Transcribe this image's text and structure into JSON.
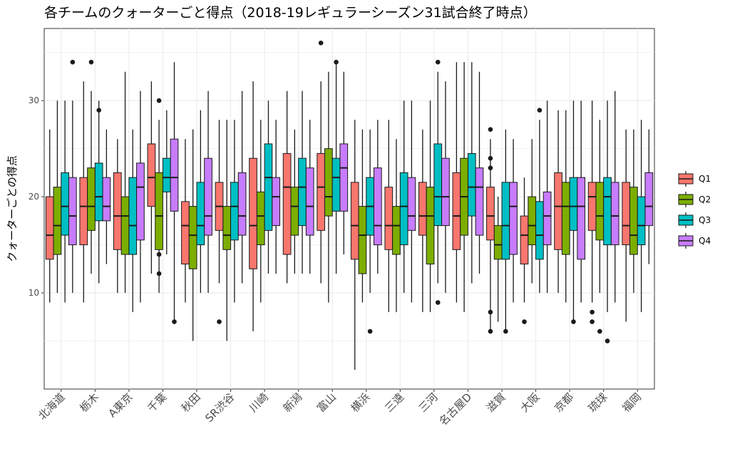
{
  "chart_data": {
    "type": "boxplot",
    "title": "各チームのクォーターごと得点（2018-19レギュラーシーズン31試合終了時点）",
    "xlabel": "",
    "ylabel": "クォーターごとの得点",
    "ylim": [
      0,
      37.5
    ],
    "yticks": [
      10,
      20,
      30
    ],
    "grid": true,
    "legend_position": "right",
    "series_names": [
      "Q1",
      "Q2",
      "Q3",
      "Q4"
    ],
    "colors": {
      "Q1": "#F8766D",
      "Q2": "#7CAE00",
      "Q3": "#00BFC4",
      "Q4": "#C77CFF"
    },
    "categories": [
      "北海道",
      "栃木",
      "A東京",
      "千葉",
      "秋田",
      "SR渋谷",
      "川崎",
      "新潟",
      "富山",
      "横浜",
      "三遠",
      "三河",
      "名古屋D",
      "滋賀",
      "大阪",
      "京都",
      "琉球",
      "福岡"
    ],
    "boxes": [
      [
        [
          9,
          13.5,
          16,
          20,
          27,
          []
        ],
        [
          10,
          14,
          17,
          21,
          30,
          []
        ],
        [
          9,
          16,
          19,
          22.5,
          30,
          []
        ],
        [
          10,
          15,
          18,
          22,
          30,
          [
            34
          ]
        ]
      ],
      [
        [
          9,
          15,
          19,
          22,
          32,
          []
        ],
        [
          12,
          16.5,
          19,
          23,
          31,
          [
            34
          ]
        ],
        [
          11,
          17.5,
          20,
          23.5,
          30,
          [
            29
          ]
        ],
        [
          13,
          17.5,
          19,
          22,
          27,
          []
        ]
      ],
      [
        [
          10,
          14.5,
          18,
          22.5,
          26,
          []
        ],
        [
          10,
          14,
          18,
          20,
          33,
          []
        ],
        [
          8,
          14,
          17,
          22,
          27,
          []
        ],
        [
          9,
          15.5,
          21,
          23.5,
          31,
          []
        ]
      ],
      [
        [
          12,
          19,
          22,
          25.5,
          32,
          []
        ],
        [
          10,
          14.5,
          18,
          22.5,
          28,
          [
            30,
            14,
            12
          ]
        ],
        [
          14,
          20.5,
          22,
          24,
          29,
          []
        ],
        [
          7,
          18.5,
          22,
          26,
          34,
          [
            7
          ]
        ]
      ],
      [
        [
          9,
          13,
          17,
          19.5,
          26,
          []
        ],
        [
          5,
          12.5,
          16,
          19,
          27,
          []
        ],
        [
          10,
          15,
          17,
          21.5,
          29,
          []
        ],
        [
          10,
          16,
          18,
          24,
          31,
          []
        ]
      ],
      [
        [
          11,
          16.5,
          19,
          21.5,
          28,
          [
            7
          ]
        ],
        [
          5,
          14.5,
          16,
          19,
          28,
          []
        ],
        [
          9,
          15.5,
          19,
          21.5,
          28,
          []
        ],
        [
          11,
          16,
          18,
          22.5,
          31,
          []
        ]
      ],
      [
        [
          6,
          12.5,
          17,
          24,
          32,
          []
        ],
        [
          9,
          15,
          18,
          20.5,
          28,
          []
        ],
        [
          12,
          16.5,
          22,
          25.5,
          30,
          []
        ],
        [
          12,
          17,
          20,
          22,
          28,
          []
        ]
      ],
      [
        [
          11,
          14,
          21,
          24.5,
          31,
          []
        ],
        [
          12,
          16,
          19,
          21,
          27,
          []
        ],
        [
          12,
          17,
          21,
          24,
          31,
          []
        ],
        [
          12,
          16,
          19,
          23,
          28,
          []
        ]
      ],
      [
        [
          11,
          16.5,
          21,
          24.5,
          32,
          [
            36
          ]
        ],
        [
          9,
          18,
          20,
          25,
          33,
          []
        ],
        [
          12,
          18.5,
          22,
          24,
          34,
          [
            34
          ]
        ],
        [
          14,
          18.5,
          23,
          25.5,
          33,
          []
        ]
      ],
      [
        [
          2,
          13.5,
          17,
          21.5,
          28,
          []
        ],
        [
          9,
          12,
          16,
          19,
          27,
          []
        ],
        [
          10,
          16,
          19,
          22,
          27,
          [
            6
          ]
        ],
        [
          12,
          15,
          17,
          23,
          28,
          []
        ]
      ],
      [
        [
          8,
          14.5,
          17,
          21,
          28,
          []
        ],
        [
          8,
          14,
          17,
          19,
          26,
          []
        ],
        [
          10,
          15,
          19,
          22.5,
          30,
          []
        ],
        [
          9,
          16.5,
          18,
          22,
          30,
          []
        ]
      ],
      [
        [
          8,
          16,
          18,
          21.5,
          27,
          []
        ],
        [
          8,
          13,
          18,
          21,
          30,
          []
        ],
        [
          11,
          17,
          20,
          25.5,
          33,
          [
            34,
            9
          ]
        ],
        [
          10,
          17,
          20,
          24,
          32,
          []
        ]
      ],
      [
        [
          9,
          14.5,
          18,
          22.5,
          34,
          []
        ],
        [
          8,
          16,
          20,
          24,
          34,
          []
        ],
        [
          11,
          18,
          21,
          24.5,
          34,
          []
        ],
        [
          12,
          16,
          21,
          23,
          33,
          []
        ]
      ],
      [
        [
          6,
          15.5,
          18,
          21,
          26,
          [
            27,
            24,
            23,
            8,
            6
          ]
        ],
        [
          7,
          13.5,
          15,
          17,
          20,
          []
        ],
        [
          6,
          13.5,
          17,
          21.5,
          27,
          [
            6
          ]
        ],
        [
          9,
          14,
          19,
          21.5,
          26,
          []
        ]
      ],
      [
        [
          9,
          13,
          16,
          18,
          22,
          [
            7
          ]
        ],
        [
          11,
          15,
          17,
          20,
          26,
          []
        ],
        [
          10,
          13.5,
          16,
          19.5,
          28,
          [
            29
          ]
        ],
        [
          10,
          15,
          18,
          20.5,
          30,
          []
        ]
      ],
      [
        [
          10,
          14.5,
          19,
          22.5,
          29,
          []
        ],
        [
          9,
          14,
          19,
          21.5,
          29,
          []
        ],
        [
          7,
          16.5,
          19,
          22,
          30,
          [
            7
          ]
        ],
        [
          9,
          13.5,
          19,
          22,
          30,
          []
        ]
      ],
      [
        [
          9,
          16.5,
          20,
          21.5,
          30,
          [
            8,
            7
          ]
        ],
        [
          10,
          15.5,
          18,
          21.5,
          28,
          [
            6
          ]
        ],
        [
          8,
          15,
          20,
          22,
          30,
          [
            5
          ]
        ],
        [
          9,
          15,
          18,
          21.5,
          31,
          []
        ]
      ],
      [
        [
          7,
          15,
          17,
          21.5,
          27,
          []
        ],
        [
          10,
          14,
          16,
          21,
          27,
          []
        ],
        [
          8,
          15,
          17,
          20,
          28,
          []
        ],
        [
          13,
          17,
          19,
          22.5,
          27,
          []
        ]
      ]
    ]
  }
}
